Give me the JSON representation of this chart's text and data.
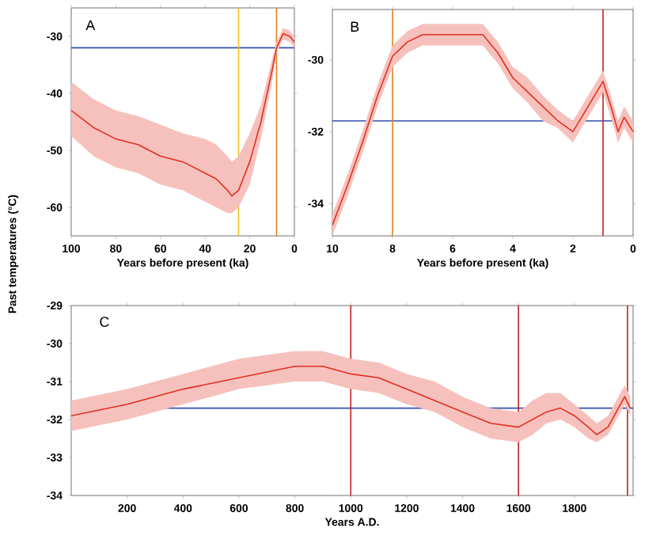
{
  "chart_data": [
    {
      "type": "line",
      "annotations": [
        "A"
      ],
      "ylabel": "Past temperatures (°C)",
      "xlabel": "Years before present (ka)",
      "xlim": [
        100,
        0
      ],
      "ylim": [
        -65,
        -25
      ],
      "xticks": [
        100,
        80,
        60,
        40,
        20,
        0
      ],
      "yticks": [
        -30,
        -40,
        -50,
        -60
      ],
      "ref_lines": [
        {
          "axis": "y",
          "value": -32,
          "color": "#3050b0"
        },
        {
          "axis": "x",
          "value": 25,
          "color": "#f0c020"
        },
        {
          "axis": "x",
          "value": 8,
          "color": "#e08020"
        }
      ],
      "series": [
        {
          "color": "#e03020",
          "x": [
            100,
            90,
            80,
            70,
            60,
            50,
            40,
            35,
            30,
            28,
            25,
            20,
            15,
            10,
            8,
            5,
            2,
            0
          ],
          "values": [
            -43,
            -46,
            -48,
            -49,
            -51,
            -52,
            -54,
            -55,
            -57,
            -58,
            -57,
            -52,
            -45,
            -36,
            -32,
            -29.5,
            -30,
            -31
          ],
          "lower": [
            -47.5,
            -51,
            -53,
            -54,
            -56,
            -57,
            -59,
            -60,
            -61,
            -61,
            -60,
            -56,
            -48,
            -38,
            -33,
            -30.5,
            -31,
            -32
          ],
          "upper": [
            -38,
            -41,
            -43,
            -44,
            -45.5,
            -47,
            -48,
            -49,
            -51,
            -52,
            -51,
            -47,
            -42,
            -34,
            -31,
            -28.5,
            -29,
            -30
          ]
        }
      ]
    },
    {
      "type": "line",
      "annotations": [
        "B"
      ],
      "xlabel": "Years before present (ka)",
      "xlim": [
        10,
        0
      ],
      "ylim": [
        -34.9,
        -28.6
      ],
      "xticks": [
        10,
        8,
        6,
        4,
        2,
        0
      ],
      "yticks": [
        -30,
        -32,
        -34
      ],
      "ref_lines": [
        {
          "axis": "y",
          "value": -31.7,
          "color": "#3050b0"
        },
        {
          "axis": "x",
          "value": 8,
          "color": "#e08020"
        },
        {
          "axis": "x",
          "value": 1,
          "color": "#c02020"
        }
      ],
      "series": [
        {
          "color": "#e03020",
          "x": [
            10,
            9.5,
            9,
            8.5,
            8,
            7.5,
            7,
            6,
            5,
            4.5,
            4,
            3.5,
            3,
            2.5,
            2,
            1.5,
            1,
            0.7,
            0.5,
            0.3,
            0
          ],
          "values": [
            -34.6,
            -33.5,
            -32.3,
            -31,
            -29.9,
            -29.5,
            -29.3,
            -29.3,
            -29.3,
            -29.8,
            -30.5,
            -30.9,
            -31.3,
            -31.7,
            -32,
            -31.3,
            -30.6,
            -31.4,
            -32,
            -31.6,
            -32
          ],
          "lower": [
            -34.9,
            -33.8,
            -32.6,
            -31.3,
            -30.2,
            -29.8,
            -29.6,
            -29.6,
            -29.6,
            -30.1,
            -30.8,
            -31.2,
            -31.7,
            -31.9,
            -32.3,
            -31.6,
            -30.9,
            -31.7,
            -32.3,
            -31.9,
            -32.3
          ],
          "upper": [
            -34.3,
            -33.2,
            -32,
            -30.7,
            -29.6,
            -29.2,
            -29,
            -29,
            -29,
            -29.5,
            -30.2,
            -30.5,
            -31,
            -31.4,
            -31.7,
            -31,
            -30.3,
            -31.1,
            -31.7,
            -31.3,
            -31.7
          ]
        }
      ]
    },
    {
      "type": "line",
      "annotations": [
        "C"
      ],
      "xlabel": "Years A.D.",
      "xlim": [
        0,
        2010
      ],
      "ylim": [
        -34,
        -29
      ],
      "xticks": [
        200,
        400,
        600,
        800,
        1000,
        1200,
        1400,
        1600,
        1800
      ],
      "yticks": [
        -29,
        -30,
        -31,
        -32,
        -33,
        -34
      ],
      "ref_lines": [
        {
          "axis": "y",
          "value": -31.7,
          "color": "#3050b0"
        },
        {
          "axis": "x",
          "value": 1000,
          "color": "#c02020"
        },
        {
          "axis": "x",
          "value": 1600,
          "color": "#c02020"
        },
        {
          "axis": "x",
          "value": 1990,
          "color": "#c02020"
        }
      ],
      "series": [
        {
          "color": "#e03020",
          "x": [
            0,
            200,
            400,
            600,
            800,
            900,
            1000,
            1100,
            1200,
            1300,
            1400,
            1500,
            1600,
            1650,
            1700,
            1750,
            1800,
            1850,
            1880,
            1920,
            1950,
            1980,
            2000
          ],
          "values": [
            -31.9,
            -31.6,
            -31.2,
            -30.9,
            -30.6,
            -30.6,
            -30.8,
            -30.9,
            -31.2,
            -31.5,
            -31.8,
            -32.1,
            -32.2,
            -32.0,
            -31.8,
            -31.7,
            -31.9,
            -32.2,
            -32.4,
            -32.2,
            -31.8,
            -31.4,
            -31.7
          ],
          "lower": [
            -32.3,
            -32.0,
            -31.6,
            -31.2,
            -31.0,
            -31.0,
            -31.2,
            -31.3,
            -31.6,
            -31.8,
            -32.2,
            -32.5,
            -32.6,
            -32.4,
            -32.1,
            -32.0,
            -32.2,
            -32.5,
            -32.6,
            -32.4,
            -32.0,
            -31.6,
            -31.9
          ],
          "upper": [
            -31.5,
            -31.2,
            -30.8,
            -30.4,
            -30.2,
            -30.2,
            -30.4,
            -30.5,
            -30.8,
            -31.0,
            -31.4,
            -31.7,
            -31.8,
            -31.5,
            -31.3,
            -31.3,
            -31.6,
            -31.9,
            -32.1,
            -31.9,
            -31.5,
            -31.1,
            -31.4
          ]
        }
      ]
    }
  ]
}
